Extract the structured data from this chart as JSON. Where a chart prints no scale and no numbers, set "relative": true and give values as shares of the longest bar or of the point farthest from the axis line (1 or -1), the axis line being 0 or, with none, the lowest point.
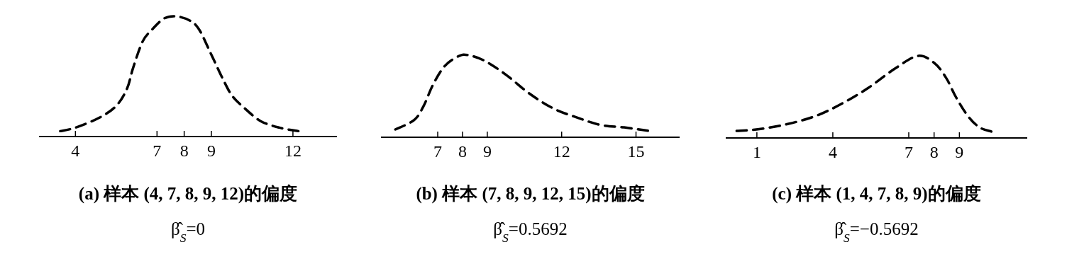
{
  "chart_data": [
    {
      "type": "line",
      "relative": true,
      "color": "#000000",
      "line_style": "dashed",
      "xlim": [
        2.66,
        13.62
      ],
      "xticks": [
        4,
        7,
        8,
        9,
        12
      ],
      "xlabel": "(a) 样本 (4, 7, 8, 9, 12)的偏度",
      "annotations": [
        "β̂$_{S}$=0"
      ],
      "x": [
        3.44,
        4.0,
        4.91,
        5.52,
        5.9,
        6.12,
        6.47,
        6.82,
        7.25,
        7.68,
        8.2,
        8.55,
        8.98,
        9.42,
        9.76,
        10.2,
        10.8,
        11.5,
        12.2
      ],
      "values": [
        0.045,
        0.074,
        0.16,
        0.26,
        0.4,
        0.57,
        0.79,
        0.89,
        0.98,
        1.0,
        0.965,
        0.89,
        0.69,
        0.48,
        0.34,
        0.24,
        0.13,
        0.074,
        0.045
      ]
    },
    {
      "type": "line",
      "relative": true,
      "color": "#000000",
      "line_style": "dashed",
      "xlim": [
        4.71,
        16.76
      ],
      "xticks": [
        7,
        8,
        9,
        12,
        15
      ],
      "xlabel": "(b) 样本 (7, 8, 9, 12, 15)的偏度",
      "annotations": [
        "β̂$_{S}$=0.5692"
      ],
      "x": [
        5.29,
        6.05,
        6.43,
        6.81,
        7.29,
        7.86,
        8.24,
        8.9,
        9.76,
        10.71,
        11.67,
        12.62,
        13.57,
        14.52,
        15.48
      ],
      "values": [
        0.095,
        0.21,
        0.38,
        0.64,
        0.87,
        0.99,
        1.0,
        0.93,
        0.76,
        0.53,
        0.35,
        0.24,
        0.15,
        0.12,
        0.08
      ]
    },
    {
      "type": "line",
      "relative": true,
      "color": "#000000",
      "line_style": "dashed",
      "xlim": [
        -0.23,
        11.68
      ],
      "xticks": [
        1,
        4,
        7,
        8,
        9
      ],
      "xlabel": "(c) 样本 (1, 4, 7, 8, 9)的偏度",
      "annotations": [
        "β̂$_{S}$=−0.5692"
      ],
      "x": [
        0.2,
        1.09,
        2.22,
        3.34,
        4.37,
        5.4,
        6.43,
        7.36,
        8.02,
        8.48,
        8.86,
        9.33,
        9.79,
        10.26
      ],
      "values": [
        0.086,
        0.107,
        0.17,
        0.27,
        0.42,
        0.61,
        0.84,
        1.0,
        0.91,
        0.73,
        0.5,
        0.27,
        0.13,
        0.078
      ]
    }
  ]
}
